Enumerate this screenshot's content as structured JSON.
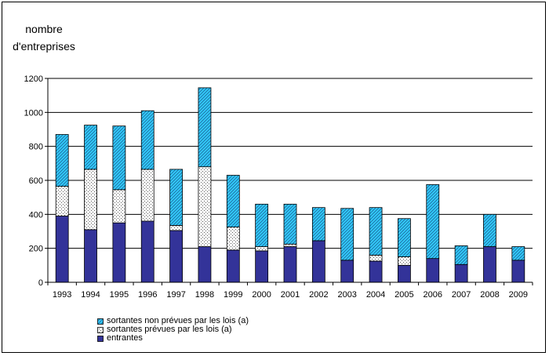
{
  "chart_data": {
    "type": "bar",
    "stacked": true,
    "ylabel": "nombre d'entreprises",
    "ylabel_lines": [
      "nombre",
      "d'entreprises"
    ],
    "xlabel": "",
    "ylim": [
      0,
      1200
    ],
    "yticks": [
      0,
      200,
      400,
      600,
      800,
      1000,
      1200
    ],
    "grid": true,
    "legend_placement": "bottom-left",
    "categories": [
      "1993",
      "1994",
      "1995",
      "1996",
      "1997",
      "1998",
      "1999",
      "2000",
      "2001",
      "2002",
      "2003",
      "2004",
      "2005",
      "2006",
      "2007",
      "2008",
      "2009"
    ],
    "series": [
      {
        "name": "entrantes",
        "color": "#333399",
        "pattern": "solid",
        "values": [
          390,
          310,
          350,
          360,
          305,
          210,
          190,
          185,
          210,
          245,
          130,
          125,
          100,
          140,
          105,
          210,
          130
        ]
      },
      {
        "name": "sortantes prévues par les lois (a)",
        "color": "#ffffff",
        "pattern": "dots",
        "values": [
          175,
          355,
          195,
          305,
          30,
          470,
          135,
          25,
          15,
          0,
          0,
          35,
          50,
          0,
          0,
          0,
          0
        ]
      },
      {
        "name": "sortantes  non prévues par les lois (a)",
        "color": "#33ccff",
        "pattern": "diagonal-hatch",
        "values": [
          305,
          260,
          375,
          345,
          330,
          465,
          305,
          250,
          235,
          195,
          305,
          280,
          225,
          435,
          110,
          190,
          80
        ]
      }
    ],
    "legend_order": [
      2,
      1,
      0
    ]
  }
}
